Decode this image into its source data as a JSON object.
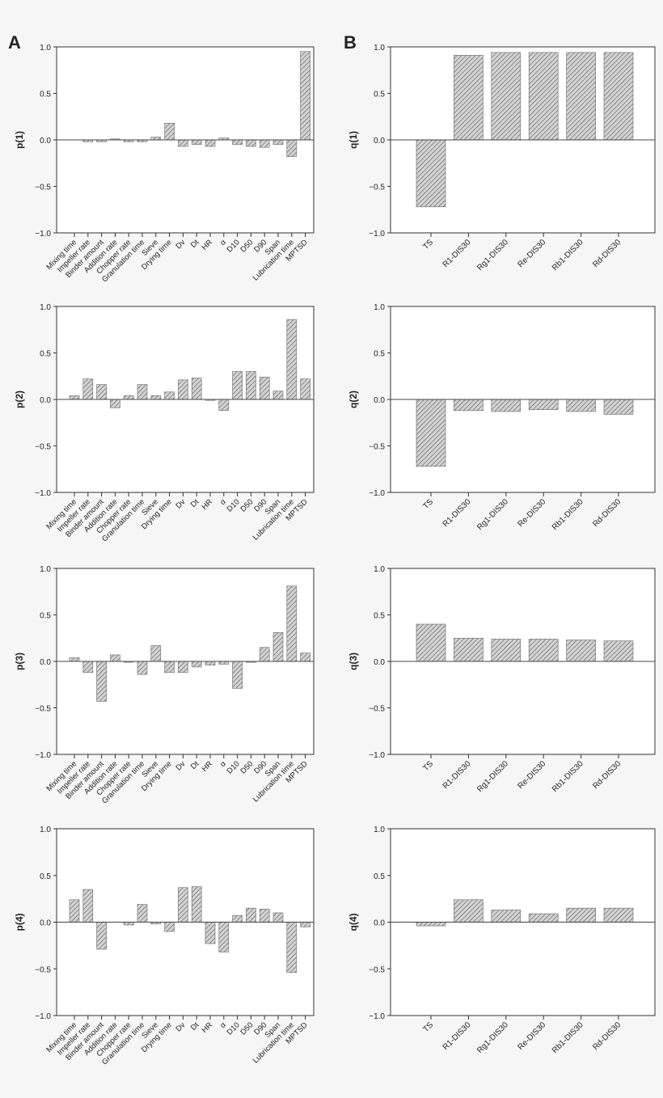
{
  "panel_labels": [
    "A",
    "B"
  ],
  "colors": {
    "bar_fill": "#d0d0d0",
    "hatch": "#555555",
    "axis": "#333333"
  },
  "chart_data": [
    {
      "type": "bar",
      "panel": "A",
      "ylabel": "p(1)",
      "ylim": [
        -1,
        1
      ],
      "yticks": [
        "1.0",
        "0.5",
        "0.0",
        "−0.5",
        "−1.0"
      ],
      "categories": [
        "Mixing time",
        "Impeller rate",
        "Binder amount",
        "Addition rate",
        "Chopper rate",
        "Granulation time",
        "Sieve",
        "Drying time",
        "Dv",
        "Dt",
        "HR",
        "α",
        "D10",
        "D50",
        "D90",
        "Span",
        "Lubrication time",
        "MPTSD"
      ],
      "values": [
        0,
        -0.02,
        -0.02,
        0.01,
        -0.02,
        -0.02,
        0.03,
        0.18,
        -0.07,
        -0.05,
        -0.07,
        0.02,
        -0.05,
        -0.07,
        -0.08,
        -0.05,
        -0.18,
        0.95
      ]
    },
    {
      "type": "bar",
      "panel": "B",
      "ylabel": "q(1)",
      "ylim": [
        -1,
        1
      ],
      "yticks": [
        "1.0",
        "0.5",
        "0.0",
        "−0.5",
        "−1.0"
      ],
      "categories": [
        "TS",
        "R1-DIS30",
        "Rg1-DIS30",
        "Re-DIS30",
        "Rb1-DIS30",
        "Rd-DIS30"
      ],
      "values": [
        -0.72,
        0.91,
        0.94,
        0.94,
        0.94,
        0.94
      ]
    },
    {
      "type": "bar",
      "panel": "A",
      "ylabel": "p(2)",
      "ylim": [
        -1,
        1
      ],
      "yticks": [
        "1.0",
        "0.5",
        "0.0",
        "−0.5",
        "−1.0"
      ],
      "categories": [
        "Mixing time",
        "Impeller rate",
        "Binder amount",
        "Addition rate",
        "Chopper rate",
        "Granulation time",
        "Sieve",
        "Drying time",
        "Dv",
        "Dt",
        "HR",
        "α",
        "D10",
        "D50",
        "D90",
        "Span",
        "Lubrication time",
        "MPTSD"
      ],
      "values": [
        0.04,
        0.22,
        0.16,
        -0.09,
        0.04,
        0.16,
        0.04,
        0.08,
        0.21,
        0.23,
        -0.01,
        -0.12,
        0.3,
        0.3,
        0.24,
        0.09,
        0.86,
        0.22
      ]
    },
    {
      "type": "bar",
      "panel": "B",
      "ylabel": "q(2)",
      "ylim": [
        -1,
        1
      ],
      "yticks": [
        "1.0",
        "0.5",
        "0.0",
        "−0.5",
        "−1.0"
      ],
      "categories": [
        "TS",
        "R1-DIS30",
        "Rg1-DIS30",
        "Re-DIS30",
        "Rb1-DIS30",
        "Rd-DIS30"
      ],
      "values": [
        -0.72,
        -0.12,
        -0.13,
        -0.11,
        -0.13,
        -0.16
      ]
    },
    {
      "type": "bar",
      "panel": "A",
      "ylabel": "p(3)",
      "ylim": [
        -1,
        1
      ],
      "yticks": [
        "1.0",
        "0.5",
        "0.0",
        "−0.5",
        "−1.0"
      ],
      "categories": [
        "Mixing time",
        "Impeller rate",
        "Binder amount",
        "Addition rate",
        "Chopper rate",
        "Granulation time",
        "Sieve",
        "Drying time",
        "Dv",
        "Dt",
        "HR",
        "α",
        "D10",
        "D50",
        "D90",
        "Span",
        "Lubrication time",
        "MPTSD"
      ],
      "values": [
        0.04,
        -0.12,
        -0.43,
        0.07,
        -0.01,
        -0.14,
        0.17,
        -0.12,
        -0.12,
        -0.06,
        -0.04,
        -0.03,
        -0.29,
        -0.01,
        0.15,
        0.31,
        0.81,
        0.09
      ]
    },
    {
      "type": "bar",
      "panel": "B",
      "ylabel": "q(3)",
      "ylim": [
        -1,
        1
      ],
      "yticks": [
        "1.0",
        "0.5",
        "0.0",
        "−0.5",
        "−1.0"
      ],
      "categories": [
        "TS",
        "R1-DIS30",
        "Rg1-DIS30",
        "Re-DIS30",
        "Rb1-DIS30",
        "Rd-DIS30"
      ],
      "values": [
        0.4,
        0.25,
        0.24,
        0.24,
        0.23,
        0.22
      ]
    },
    {
      "type": "bar",
      "panel": "A",
      "ylabel": "p(4)",
      "ylim": [
        -1,
        1
      ],
      "yticks": [
        "1.0",
        "0.5",
        "0.0",
        "−0.5",
        "−1.0"
      ],
      "categories": [
        "Mixing time",
        "Impeller rate",
        "Binder amount",
        "Addition rate",
        "Chopper rate",
        "Granulation time",
        "Sieve",
        "Drying time",
        "Dv",
        "Dt",
        "HR",
        "α",
        "D10",
        "D50",
        "D90",
        "Span",
        "Lubrication time",
        "MPTSD"
      ],
      "values": [
        0.24,
        0.35,
        -0.29,
        0,
        -0.03,
        0.19,
        -0.02,
        -0.1,
        0.37,
        0.38,
        -0.23,
        -0.32,
        0.07,
        0.15,
        0.14,
        0.1,
        -0.54,
        -0.05
      ]
    },
    {
      "type": "bar",
      "panel": "B",
      "ylabel": "q(4)",
      "ylim": [
        -1,
        1
      ],
      "yticks": [
        "1.0",
        "0.5",
        "0.0",
        "−0.5",
        "−1.0"
      ],
      "categories": [
        "TS",
        "R1-DIS30",
        "Rg1-DIS30",
        "Re-DIS30",
        "Rb1-DIS30",
        "Rd-DIS30"
      ],
      "values": [
        -0.04,
        0.24,
        0.13,
        0.09,
        0.15,
        0.15
      ]
    }
  ]
}
